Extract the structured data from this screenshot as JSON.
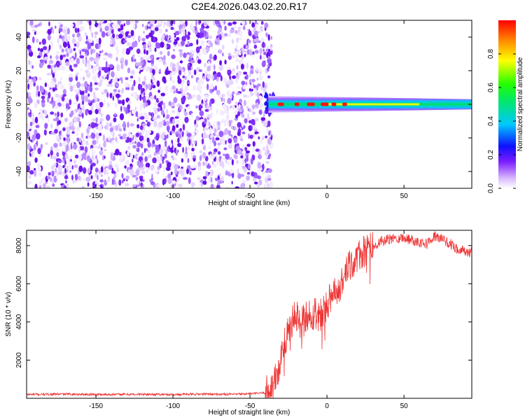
{
  "title": "C2E4.2026.043.02.20.R17",
  "colorbar": {
    "label": "Normalized spectral amplitude",
    "range": [
      0.0,
      1.0
    ],
    "ticks": [
      "0.0",
      "0.2",
      "0.4",
      "0.6",
      "0.8"
    ],
    "tick_values": [
      0.0,
      0.2,
      0.4,
      0.6,
      0.8
    ]
  },
  "chart_data": [
    {
      "type": "heatmap",
      "xlabel": "Height of straight line (km)",
      "ylabel": "Frequency (Hz)",
      "xlim": [
        -195,
        94
      ],
      "ylim": [
        -50,
        50
      ],
      "xticks": [
        -150,
        -100,
        -50,
        0,
        50
      ],
      "yticks": [
        -40,
        -20,
        0,
        20,
        40
      ],
      "noise_region_x": [
        -195,
        -36
      ],
      "signal_band": {
        "center_hz": 0,
        "half_width_hz_start": 5,
        "half_width_hz_end": 3,
        "x_start": -38,
        "x_end": 94
      },
      "colormap": [
        "#ffffff",
        "#dcc3ff",
        "#8a2be2",
        "#1010ff",
        "#00c8ff",
        "#00ff66",
        "#ffff00",
        "#ff0000"
      ]
    },
    {
      "type": "line",
      "xlabel": "Height of straight line (km)",
      "ylabel": "SNR (10 * v/v)",
      "xlim": [
        -195,
        94
      ],
      "ylim": [
        0,
        8800
      ],
      "xticks": [
        -150,
        -100,
        -50,
        0,
        50
      ],
      "yticks": [
        2000,
        4000,
        6000,
        8000
      ],
      "color": "#ee3333",
      "series": [
        {
          "x": [
            -195,
            -170,
            -150,
            -120,
            -100,
            -80,
            -60,
            -50,
            -45,
            -40,
            -38,
            -35,
            -32,
            -30,
            -28,
            -25,
            -22,
            -20,
            -18,
            -15,
            -12,
            -10,
            -8,
            -5,
            -2,
            0,
            2,
            5,
            8,
            10,
            12,
            15,
            20,
            25,
            30,
            35,
            40,
            45,
            50,
            55,
            60,
            65,
            70,
            75,
            80,
            85,
            90,
            94
          ],
          "y": [
            200,
            220,
            200,
            210,
            200,
            220,
            210,
            240,
            260,
            300,
            400,
            700,
            1300,
            2000,
            3000,
            3700,
            4000,
            4400,
            3900,
            4100,
            4500,
            4000,
            4600,
            4300,
            4700,
            5000,
            5200,
            5400,
            5600,
            6300,
            6500,
            6900,
            7400,
            7700,
            8000,
            8200,
            8300,
            8400,
            8400,
            8300,
            8200,
            8100,
            8500,
            8300,
            8100,
            7800,
            7700,
            7600
          ]
        }
      ]
    }
  ]
}
